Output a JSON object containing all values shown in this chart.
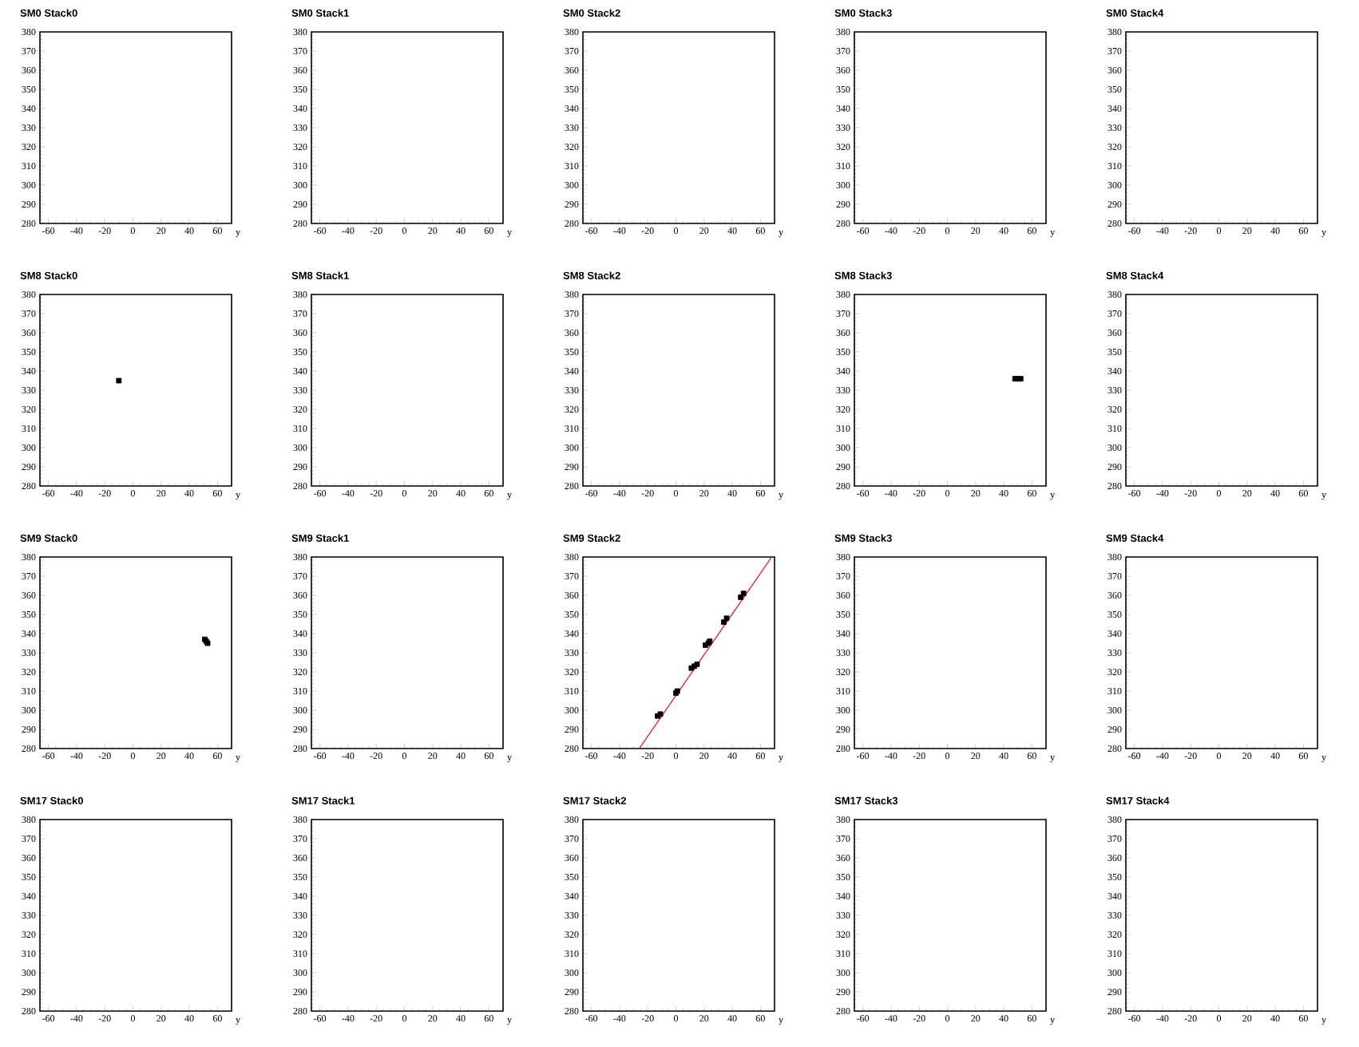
{
  "chart_data": [
    {
      "type": "scatter",
      "title": "SM0 Stack0",
      "xlabel": "y",
      "xlim": [
        -66,
        70
      ],
      "ylim": [
        280,
        380
      ],
      "xticks": [
        -60,
        -40,
        -20,
        0,
        20,
        40,
        60
      ],
      "yticks": [
        280,
        290,
        300,
        310,
        320,
        330,
        340,
        350,
        360,
        370,
        380
      ]
    },
    {
      "type": "scatter",
      "title": "SM0 Stack1",
      "xlabel": "y",
      "xlim": [
        -66,
        70
      ],
      "ylim": [
        280,
        380
      ],
      "xticks": [
        -60,
        -40,
        -20,
        0,
        20,
        40,
        60
      ],
      "yticks": [
        280,
        290,
        300,
        310,
        320,
        330,
        340,
        350,
        360,
        370,
        380
      ]
    },
    {
      "type": "scatter",
      "title": "SM0 Stack2",
      "xlabel": "y",
      "xlim": [
        -66,
        70
      ],
      "ylim": [
        280,
        380
      ],
      "xticks": [
        -60,
        -40,
        -20,
        0,
        20,
        40,
        60
      ],
      "yticks": [
        280,
        290,
        300,
        310,
        320,
        330,
        340,
        350,
        360,
        370,
        380
      ]
    },
    {
      "type": "scatter",
      "title": "SM0 Stack3",
      "xlabel": "y",
      "xlim": [
        -66,
        70
      ],
      "ylim": [
        280,
        380
      ],
      "xticks": [
        -60,
        -40,
        -20,
        0,
        20,
        40,
        60
      ],
      "yticks": [
        280,
        290,
        300,
        310,
        320,
        330,
        340,
        350,
        360,
        370,
        380
      ]
    },
    {
      "type": "scatter",
      "title": "SM0 Stack4",
      "xlabel": "y",
      "xlim": [
        -66,
        70
      ],
      "ylim": [
        280,
        380
      ],
      "xticks": [
        -60,
        -40,
        -20,
        0,
        20,
        40,
        60
      ],
      "yticks": [
        280,
        290,
        300,
        310,
        320,
        330,
        340,
        350,
        360,
        370,
        380
      ]
    },
    {
      "type": "scatter",
      "title": "SM8 Stack0",
      "xlabel": "y",
      "xlim": [
        -66,
        70
      ],
      "ylim": [
        280,
        380
      ],
      "xticks": [
        -60,
        -40,
        -20,
        0,
        20,
        40,
        60
      ],
      "yticks": [
        280,
        290,
        300,
        310,
        320,
        330,
        340,
        350,
        360,
        370,
        380
      ],
      "series": [
        {
          "color": "#000000",
          "marker": "square",
          "x": [
            -10
          ],
          "values": [
            335
          ]
        }
      ]
    },
    {
      "type": "scatter",
      "title": "SM8 Stack1",
      "xlabel": "y",
      "xlim": [
        -66,
        70
      ],
      "ylim": [
        280,
        380
      ],
      "xticks": [
        -60,
        -40,
        -20,
        0,
        20,
        40,
        60
      ],
      "yticks": [
        280,
        290,
        300,
        310,
        320,
        330,
        340,
        350,
        360,
        370,
        380
      ]
    },
    {
      "type": "scatter",
      "title": "SM8 Stack2",
      "xlabel": "y",
      "xlim": [
        -66,
        70
      ],
      "ylim": [
        280,
        380
      ],
      "xticks": [
        -60,
        -40,
        -20,
        0,
        20,
        40,
        60
      ],
      "yticks": [
        280,
        290,
        300,
        310,
        320,
        330,
        340,
        350,
        360,
        370,
        380
      ]
    },
    {
      "type": "scatter",
      "title": "SM8 Stack3",
      "xlabel": "y",
      "xlim": [
        -66,
        70
      ],
      "ylim": [
        280,
        380
      ],
      "xticks": [
        -60,
        -40,
        -20,
        0,
        20,
        40,
        60
      ],
      "yticks": [
        280,
        290,
        300,
        310,
        320,
        330,
        340,
        350,
        360,
        370,
        380
      ],
      "series": [
        {
          "color": "#000000",
          "marker": "square",
          "x": [
            48,
            50,
            52
          ],
          "values": [
            336,
            336,
            336
          ]
        }
      ]
    },
    {
      "type": "scatter",
      "title": "SM8 Stack4",
      "xlabel": "y",
      "xlim": [
        -66,
        70
      ],
      "ylim": [
        280,
        380
      ],
      "xticks": [
        -60,
        -40,
        -20,
        0,
        20,
        40,
        60
      ],
      "yticks": [
        280,
        290,
        300,
        310,
        320,
        330,
        340,
        350,
        360,
        370,
        380
      ]
    },
    {
      "type": "scatter",
      "title": "SM9 Stack0",
      "xlabel": "y",
      "xlim": [
        -66,
        70
      ],
      "ylim": [
        280,
        380
      ],
      "xticks": [
        -60,
        -40,
        -20,
        0,
        20,
        40,
        60
      ],
      "yticks": [
        280,
        290,
        300,
        310,
        320,
        330,
        340,
        350,
        360,
        370,
        380
      ],
      "series": [
        {
          "color": "#000000",
          "marker": "square",
          "x": [
            51,
            52,
            53
          ],
          "values": [
            337,
            336,
            335
          ]
        }
      ]
    },
    {
      "type": "scatter",
      "title": "SM9 Stack1",
      "xlabel": "y",
      "xlim": [
        -66,
        70
      ],
      "ylim": [
        280,
        380
      ],
      "xticks": [
        -60,
        -40,
        -20,
        0,
        20,
        40,
        60
      ],
      "yticks": [
        280,
        290,
        300,
        310,
        320,
        330,
        340,
        350,
        360,
        370,
        380
      ]
    },
    {
      "type": "scatter",
      "title": "SM9 Stack2",
      "xlabel": "y",
      "xlim": [
        -66,
        70
      ],
      "ylim": [
        280,
        380
      ],
      "xticks": [
        -60,
        -40,
        -20,
        0,
        20,
        40,
        60
      ],
      "yticks": [
        280,
        290,
        300,
        310,
        320,
        330,
        340,
        350,
        360,
        370,
        380
      ],
      "series": [
        {
          "color": "#000000",
          "marker": "square",
          "x": [
            -13,
            -11,
            0,
            1,
            11,
            13,
            15,
            21,
            23,
            24,
            34,
            36,
            46,
            48
          ],
          "values": [
            297,
            298,
            309,
            310,
            322,
            323,
            324,
            334,
            335,
            336,
            346,
            348,
            359,
            361
          ]
        },
        {
          "type": "line",
          "color": "#ff0000",
          "x": [
            -26,
            68
          ],
          "values": [
            280,
            380
          ]
        }
      ]
    },
    {
      "type": "scatter",
      "title": "SM9 Stack3",
      "xlabel": "y",
      "xlim": [
        -66,
        70
      ],
      "ylim": [
        280,
        380
      ],
      "xticks": [
        -60,
        -40,
        -20,
        0,
        20,
        40,
        60
      ],
      "yticks": [
        280,
        290,
        300,
        310,
        320,
        330,
        340,
        350,
        360,
        370,
        380
      ]
    },
    {
      "type": "scatter",
      "title": "SM9 Stack4",
      "xlabel": "y",
      "xlim": [
        -66,
        70
      ],
      "ylim": [
        280,
        380
      ],
      "xticks": [
        -60,
        -40,
        -20,
        0,
        20,
        40,
        60
      ],
      "yticks": [
        280,
        290,
        300,
        310,
        320,
        330,
        340,
        350,
        360,
        370,
        380
      ]
    },
    {
      "type": "scatter",
      "title": "SM17 Stack0",
      "xlabel": "y",
      "xlim": [
        -66,
        70
      ],
      "ylim": [
        280,
        380
      ],
      "xticks": [
        -60,
        -40,
        -20,
        0,
        20,
        40,
        60
      ],
      "yticks": [
        280,
        290,
        300,
        310,
        320,
        330,
        340,
        350,
        360,
        370,
        380
      ]
    },
    {
      "type": "scatter",
      "title": "SM17 Stack1",
      "xlabel": "y",
      "xlim": [
        -66,
        70
      ],
      "ylim": [
        280,
        380
      ],
      "xticks": [
        -60,
        -40,
        -20,
        0,
        20,
        40,
        60
      ],
      "yticks": [
        280,
        290,
        300,
        310,
        320,
        330,
        340,
        350,
        360,
        370,
        380
      ]
    },
    {
      "type": "scatter",
      "title": "SM17 Stack2",
      "xlabel": "y",
      "xlim": [
        -66,
        70
      ],
      "ylim": [
        280,
        380
      ],
      "xticks": [
        -60,
        -40,
        -20,
        0,
        20,
        40,
        60
      ],
      "yticks": [
        280,
        290,
        300,
        310,
        320,
        330,
        340,
        350,
        360,
        370,
        380
      ]
    },
    {
      "type": "scatter",
      "title": "SM17 Stack3",
      "xlabel": "y",
      "xlim": [
        -66,
        70
      ],
      "ylim": [
        280,
        380
      ],
      "xticks": [
        -60,
        -40,
        -20,
        0,
        20,
        40,
        60
      ],
      "yticks": [
        280,
        290,
        300,
        310,
        320,
        330,
        340,
        350,
        360,
        370,
        380
      ]
    },
    {
      "type": "scatter",
      "title": "SM17 Stack4",
      "xlabel": "y",
      "xlim": [
        -66,
        70
      ],
      "ylim": [
        280,
        380
      ],
      "xticks": [
        -60,
        -40,
        -20,
        0,
        20,
        40,
        60
      ],
      "yticks": [
        280,
        290,
        300,
        310,
        320,
        330,
        340,
        350,
        360,
        370,
        380
      ]
    }
  ]
}
